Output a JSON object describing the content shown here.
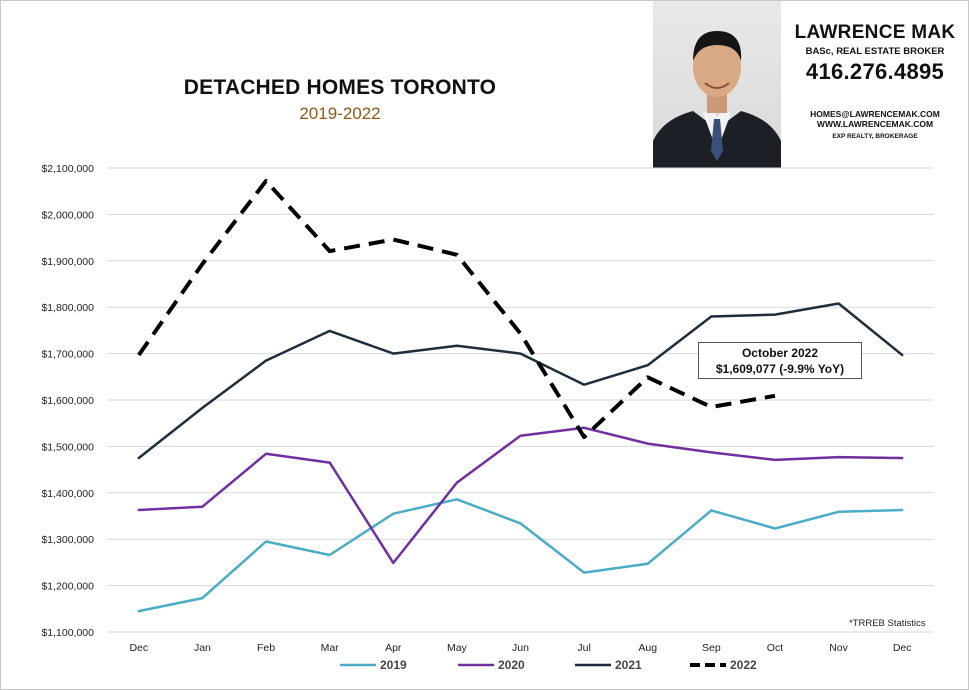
{
  "header": {
    "title": "DETACHED HOMES TORONTO",
    "subtitle": "2019-2022"
  },
  "agent": {
    "name": "LAWRENCE MAK",
    "credentials": "BASc, REAL ESTATE BROKER",
    "phone": "416.276.4895",
    "email": "HOMES@LAWRENCEMAK.COM",
    "website": "WWW.LAWRENCEMAK.COM",
    "brokerage": "EXP REALTY, BROKERAGE"
  },
  "callout": {
    "line1": "October 2022",
    "line2": "$1,609,077  (-9.9%  YoY)"
  },
  "footnote": "*TRREB Statistics",
  "colors": {
    "2019": "#4bacc6",
    "2020": "#7030a0",
    "2021": "#1f2d3d",
    "2022": "#000000",
    "grid": "#d9d9d9"
  },
  "chart_data": {
    "type": "line",
    "title": "DETACHED HOMES TORONTO",
    "subtitle": "2019-2022",
    "categories": [
      "Dec",
      "Jan",
      "Feb",
      "Mar",
      "Apr",
      "May",
      "Jun",
      "Jul",
      "Aug",
      "Sep",
      "Oct",
      "Nov",
      "Dec"
    ],
    "y_ticks": [
      "$1,100,000",
      "$1,200,000",
      "$1,300,000",
      "$1,400,000",
      "$1,500,000",
      "$1,600,000",
      "$1,700,000",
      "$1,800,000",
      "$1,900,000",
      "$2,000,000",
      "$2,100,000"
    ],
    "ylim": [
      1100000,
      2100000
    ],
    "grid": true,
    "legend_position": "bottom",
    "series": [
      {
        "name": "2019",
        "style": "solid",
        "color": "#4bacc6",
        "values": [
          1145000,
          1173000,
          1295000,
          1266000,
          1355000,
          1386000,
          1334000,
          1228000,
          1247000,
          1362000,
          1323000,
          1359000,
          1363000
        ]
      },
      {
        "name": "2020",
        "style": "solid",
        "color": "#7030a0",
        "values": [
          1363000,
          1370000,
          1484000,
          1465000,
          1249000,
          1422000,
          1523000,
          1540000,
          1506000,
          1487000,
          1471000,
          1477000,
          1475000
        ]
      },
      {
        "name": "2021",
        "style": "solid",
        "color": "#1f2d3d",
        "values": [
          1475000,
          1583000,
          1685000,
          1749000,
          1700000,
          1717000,
          1700000,
          1633000,
          1675000,
          1780000,
          1784000,
          1808000,
          1697000
        ]
      },
      {
        "name": "2022",
        "style": "dashed",
        "color": "#000000",
        "values": [
          1697000,
          1893000,
          2072000,
          1921000,
          1946000,
          1913000,
          1743000,
          1520000,
          1649000,
          1585000,
          1609077,
          null,
          null
        ]
      }
    ]
  }
}
